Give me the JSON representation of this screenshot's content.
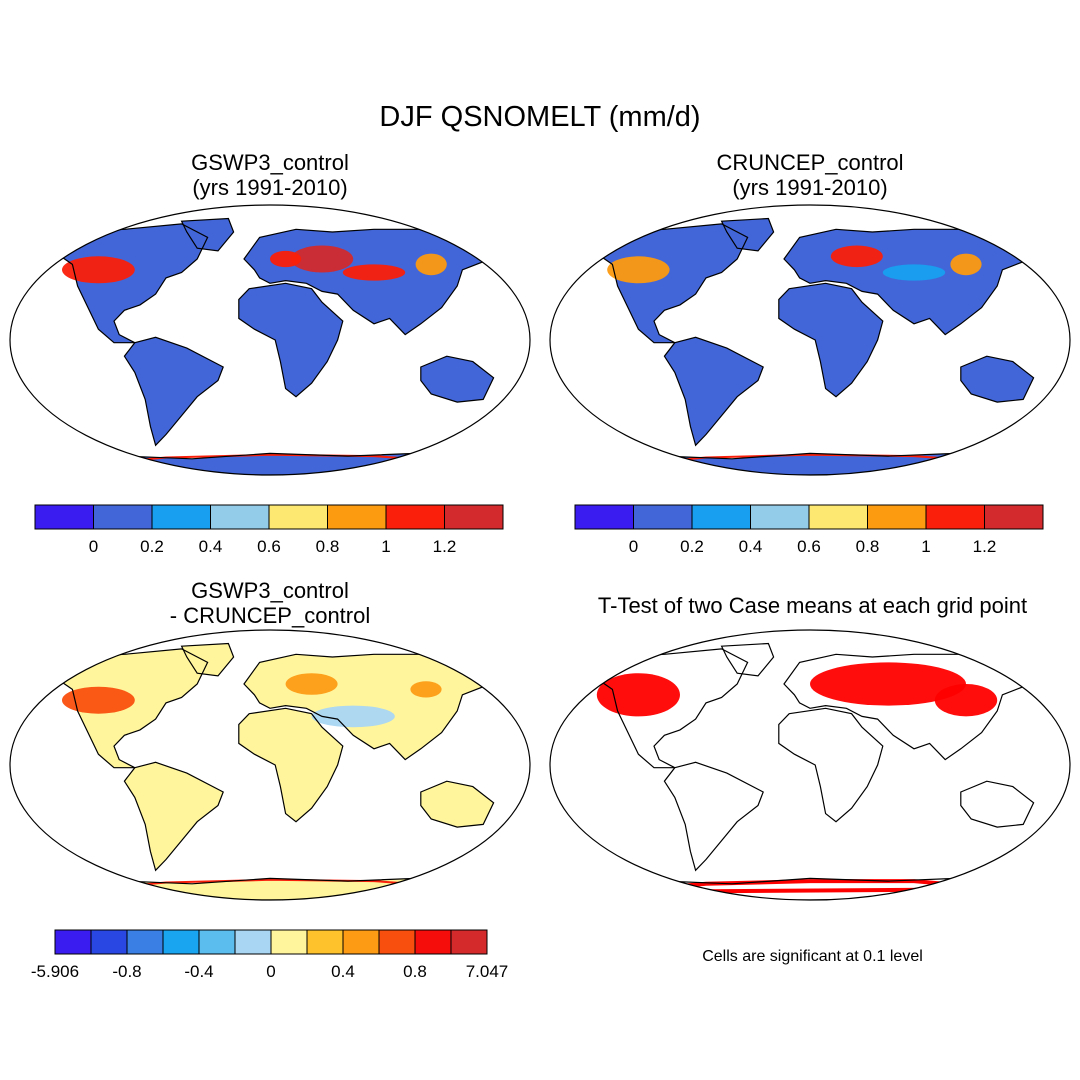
{
  "title": "DJF QSNOMELT (mm/d)",
  "panels": [
    {
      "id": "gswp3",
      "title_lines": [
        "GSWP3_control",
        "(yrs 1991-2010)"
      ],
      "colorbar": {
        "colors": [
          "#3a1cf0",
          "#4266d8",
          "#189ff0",
          "#93cce9",
          "#fde871",
          "#fc9a10",
          "#fa1f0a",
          "#d22a2d"
        ],
        "labels": [
          "0",
          "0.2",
          "0.4",
          "0.6",
          "0.8",
          "1",
          "1.2"
        ]
      }
    },
    {
      "id": "cruncep",
      "title_lines": [
        "CRUNCEP_control",
        "(yrs 1991-2010)"
      ],
      "colorbar": {
        "colors": [
          "#3a1cf0",
          "#4266d8",
          "#189ff0",
          "#93cce9",
          "#fde871",
          "#fc9a10",
          "#fa1f0a",
          "#d22a2d"
        ],
        "labels": [
          "0",
          "0.2",
          "0.4",
          "0.6",
          "0.8",
          "1",
          "1.2"
        ]
      }
    },
    {
      "id": "diff",
      "title_lines": [
        "GSWP3_control",
        "- CRUNCEP_control"
      ],
      "colorbar": {
        "colors": [
          "#3a1cf0",
          "#2847e3",
          "#3a7fe4",
          "#1aa5f0",
          "#5bbcee",
          "#a9d6f3",
          "#fff59c",
          "#fec32c",
          "#fd9b15",
          "#f94f0e",
          "#f50d0b",
          "#d42a2c"
        ],
        "labels": [
          "-5.906",
          "-0.8",
          "-0.4",
          "0",
          "0.4",
          "0.8",
          "7.047"
        ]
      }
    },
    {
      "id": "ttest",
      "title_lines": [
        "T-Test of two Case means at each grid point"
      ],
      "note": "Cells are significant at 0.1 level"
    }
  ]
}
